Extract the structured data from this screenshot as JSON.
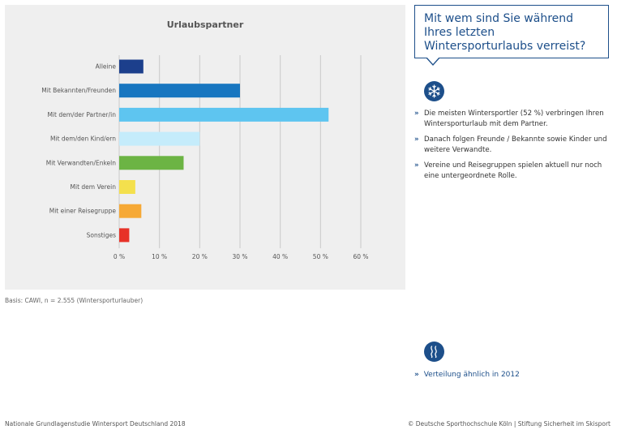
{
  "chart_data": {
    "type": "bar",
    "orientation": "horizontal",
    "title": "Urlaubspartner",
    "categories": [
      "Alleine",
      "Mit Bekannten/Freunden",
      "Mit dem/der Partner/in",
      "Mit dem/den Kind/ern",
      "Mit Verwandten/Enkeln",
      "Mit dem Verein",
      "Mit einer Reisegruppe",
      "Sonstiges"
    ],
    "values": [
      6,
      30,
      52,
      20,
      16,
      4,
      5.5,
      2.5
    ],
    "colors": [
      "#1c3f8c",
      "#1876c0",
      "#5ec5f0",
      "#c5ecfb",
      "#6cb444",
      "#f4e04d",
      "#f6a936",
      "#e73228"
    ],
    "xticks": [
      "0 %",
      "10 %",
      "20 %",
      "30 %",
      "40 %",
      "50 %",
      "60 %"
    ],
    "xlim": [
      0,
      60
    ],
    "grid": true,
    "xlabel": "",
    "ylabel": ""
  },
  "basis": "Basis: CAWI, n = 2.555 (Wintersporturlauber)",
  "question": "Mit wem sind Sie während Ihres letzten Wintersporturlaubs verreist?",
  "bullets": [
    "Die meisten Wintersportler (52 %) verbringen Ihren Wintersporturlaub mit dem Partner.",
    "Danach folgen Freunde / Bekannte sowie Kinder und weitere Verwandte.",
    "Vereine und Reisegruppen spielen aktuell nur noch eine untergeordnete Rolle."
  ],
  "bullet_marker": "»",
  "link_text": "Verteilung ähnlich in 2012",
  "footer_left": "Nationale Grundlagenstudie Wintersport Deutschland 2018",
  "footer_right": "© Deutsche Sporthochschule Köln  |  Stiftung Sicherheit im Skisport",
  "icons": {
    "top": "snowflake-icon",
    "bottom": "wave-icon"
  },
  "accent_color": "#1d4f8a"
}
